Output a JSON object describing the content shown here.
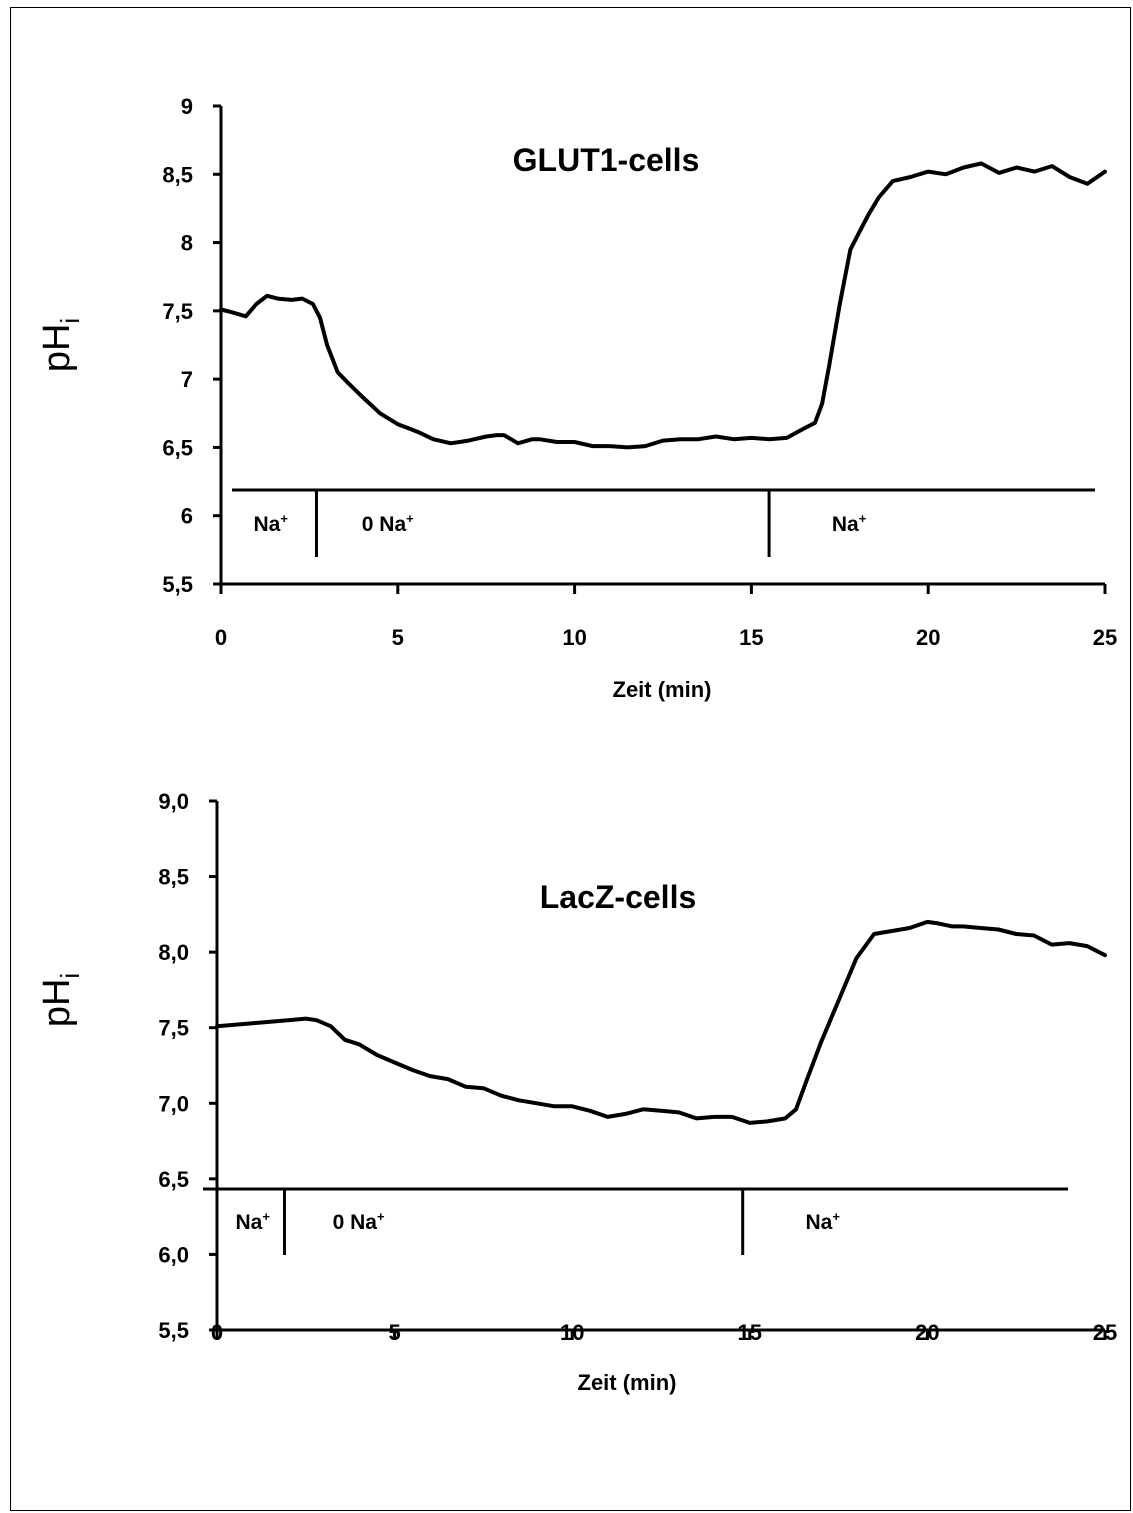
{
  "chart_data": [
    {
      "type": "line",
      "title": "GLUT1-cells",
      "xlabel": "Zeit (min)",
      "ylabel": "pH",
      "ylabel_sub": "i",
      "xlim": [
        0,
        25
      ],
      "ylim": [
        5.5,
        9
      ],
      "x_ticks": [
        "0",
        "5",
        "10",
        "15",
        "20",
        "25"
      ],
      "y_ticks": [
        "9",
        "8,5",
        "8",
        "7,5",
        "7",
        "6,5",
        "6",
        "5,5"
      ],
      "x_tick_values": [
        0,
        5,
        10,
        15,
        20,
        25
      ],
      "y_tick_values": [
        9,
        8.5,
        8,
        7.5,
        7,
        6.5,
        6,
        5.5
      ],
      "grid": false,
      "phases": [
        {
          "label": "Na",
          "sup": "+",
          "start": 0,
          "end": 2.7
        },
        {
          "label": "0 Na",
          "sup": "+",
          "start": 2.7,
          "end": 15.5
        },
        {
          "label": "Na",
          "sup": "+",
          "start": 15.5,
          "end": 24.7
        }
      ],
      "series": [
        {
          "x": [
            0,
            0.3,
            0.7,
            1.0,
            1.3,
            1.6,
            2.0,
            2.3,
            2.6,
            2.8,
            3.0,
            3.3,
            3.6,
            4.0,
            4.5,
            5.0,
            5.3,
            5.6,
            6.0,
            6.5,
            7.0,
            7.5,
            7.8,
            8.0,
            8.4,
            8.8,
            9.0,
            9.5,
            10.0,
            10.5,
            11.0,
            11.5,
            12.0,
            12.5,
            13.0,
            13.5,
            14.0,
            14.5,
            15.0,
            15.5,
            16.0,
            16.5,
            16.8,
            17.0,
            17.2,
            17.5,
            17.8,
            18.0,
            18.3,
            18.6,
            19.0,
            19.5,
            20.0,
            20.5,
            21.0,
            21.5,
            22.0,
            22.5,
            23.0,
            23.5,
            24.0,
            24.5,
            25.0
          ],
          "y": [
            7.51,
            7.49,
            7.46,
            7.55,
            7.61,
            7.59,
            7.58,
            7.59,
            7.55,
            7.45,
            7.25,
            7.05,
            6.97,
            6.87,
            6.75,
            6.67,
            6.64,
            6.61,
            6.56,
            6.53,
            6.55,
            6.58,
            6.59,
            6.59,
            6.53,
            6.56,
            6.56,
            6.54,
            6.54,
            6.51,
            6.51,
            6.5,
            6.51,
            6.55,
            6.56,
            6.56,
            6.58,
            6.56,
            6.57,
            6.56,
            6.57,
            6.64,
            6.68,
            6.82,
            7.1,
            7.55,
            7.95,
            8.05,
            8.2,
            8.33,
            8.45,
            8.48,
            8.52,
            8.5,
            8.55,
            8.58,
            8.51,
            8.55,
            8.52,
            8.56,
            8.48,
            8.43,
            8.52
          ]
        }
      ]
    },
    {
      "type": "line",
      "title": "LacZ-cells",
      "xlabel": "Zeit (min)",
      "ylabel": "pH",
      "ylabel_sub": "i",
      "xlim": [
        0,
        25
      ],
      "ylim": [
        5.5,
        9.0
      ],
      "x_ticks": [
        "0",
        "5",
        "10",
        "15",
        "20",
        "25"
      ],
      "y_ticks": [
        "9,0",
        "8,5",
        "8,0",
        "7,5",
        "7,0",
        "6,5",
        "6,0",
        "5,5"
      ],
      "x_tick_values": [
        0,
        5,
        10,
        15,
        20,
        25
      ],
      "y_tick_values": [
        9.0,
        8.5,
        8.0,
        7.5,
        7.0,
        6.5,
        6.0,
        5.5
      ],
      "grid": false,
      "phases": [
        {
          "label": "Na",
          "sup": "+",
          "start": 0,
          "end": 1.9
        },
        {
          "label": "0 Na",
          "sup": "+",
          "start": 1.9,
          "end": 14.8
        },
        {
          "label": "Na",
          "sup": "+",
          "start": 14.8,
          "end": 23.9
        }
      ],
      "series": [
        {
          "x": [
            0,
            0.5,
            1.0,
            1.5,
            2.0,
            2.5,
            2.8,
            3.2,
            3.6,
            4.0,
            4.5,
            5.0,
            5.5,
            6.0,
            6.5,
            7.0,
            7.5,
            8.0,
            8.5,
            9.0,
            9.5,
            10.0,
            10.5,
            11.0,
            11.5,
            12.0,
            12.5,
            13.0,
            13.5,
            14.0,
            14.5,
            15.0,
            15.5,
            16.0,
            16.3,
            16.6,
            17.0,
            17.5,
            18.0,
            18.5,
            19.0,
            19.5,
            20.0,
            20.3,
            20.7,
            21.0,
            21.5,
            22.0,
            22.5,
            23.0,
            23.5,
            24.0,
            24.5,
            25.0
          ],
          "y": [
            7.51,
            7.52,
            7.53,
            7.54,
            7.55,
            7.56,
            7.55,
            7.51,
            7.42,
            7.39,
            7.32,
            7.27,
            7.22,
            7.18,
            7.16,
            7.11,
            7.1,
            7.05,
            7.02,
            7.0,
            6.98,
            6.98,
            6.95,
            6.91,
            6.93,
            6.96,
            6.95,
            6.94,
            6.9,
            6.91,
            6.91,
            6.87,
            6.88,
            6.9,
            6.96,
            7.15,
            7.4,
            7.68,
            7.96,
            8.12,
            8.14,
            8.16,
            8.2,
            8.19,
            8.17,
            8.17,
            8.16,
            8.15,
            8.12,
            8.11,
            8.05,
            8.06,
            8.04,
            7.98
          ]
        }
      ]
    }
  ]
}
